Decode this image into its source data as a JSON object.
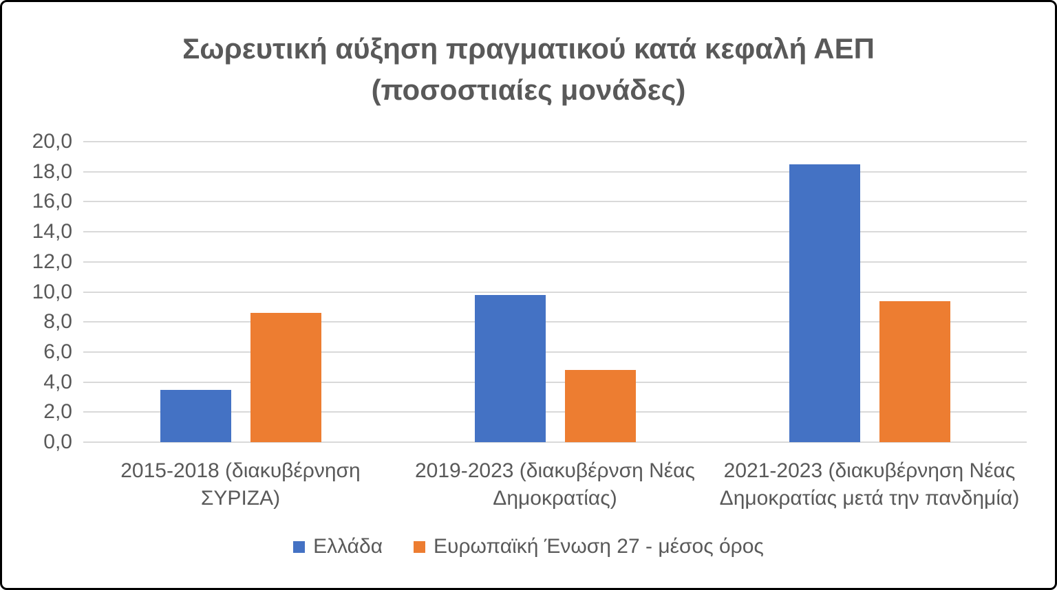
{
  "chart_data": {
    "type": "bar",
    "title": "Σωρευτική αύξηση πραγματικού κατά κεφαλή ΑΕΠ (ποσοστιαίες μονάδες)",
    "title_lines": [
      "Σωρευτική αύξηση πραγματικού κατά κεφαλή ΑΕΠ",
      "(ποσοστιαίες μονάδες)"
    ],
    "categories": [
      "2015-2018 (διακυβέρνηση ΣΥΡΙΖΑ)",
      "2019-2023 (διακυβέρνση Νέας Δημοκρατίας)",
      "2021-2023 (διακυβέρνηση Νέας Δημοκρατίας μετά την πανδημία)"
    ],
    "series": [
      {
        "name": "Ελλάδα",
        "color": "#4472C4",
        "values": [
          3.5,
          9.8,
          18.5
        ]
      },
      {
        "name": "Ευρωπαϊκή Ένωση 27 - μέσος όρος",
        "color": "#ED7D31",
        "values": [
          8.6,
          4.8,
          9.4
        ]
      }
    ],
    "ylim": [
      0,
      20
    ],
    "ytick_step": 2,
    "ytick_labels": [
      "0,0",
      "2,0",
      "4,0",
      "6,0",
      "8,0",
      "10,0",
      "12,0",
      "14,0",
      "16,0",
      "18,0",
      "20,0"
    ],
    "grid": true,
    "legend_position": "bottom",
    "colors": {
      "text": "#595959",
      "gridline": "#D9D9D9",
      "frame_border": "#000000",
      "background": "#FFFFFF"
    }
  }
}
